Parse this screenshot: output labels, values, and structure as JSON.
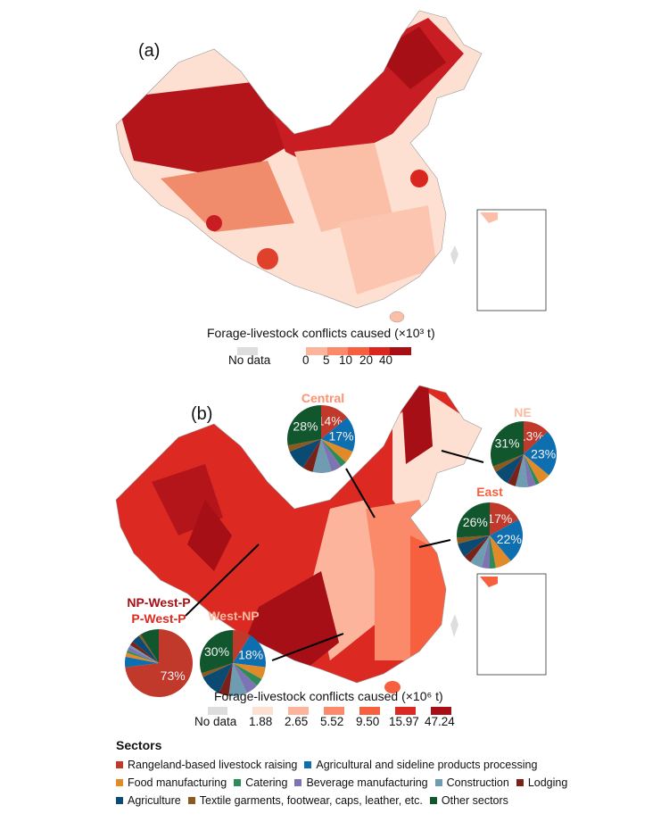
{
  "panel_a": {
    "label": "(a)",
    "legend_title": "Forage-livestock conflicts caused (×10³ t)",
    "no_data_label": "No data",
    "ticks": [
      "0",
      "5",
      "10",
      "20",
      "40"
    ],
    "colors": [
      "#fcb59c",
      "#fb8a6a",
      "#f6603f",
      "#d9271f",
      "#a50f15"
    ],
    "no_data_color": "#dddddd"
  },
  "panel_b": {
    "label": "(b)",
    "legend_title": "Forage-livestock conflicts caused (×10⁶ t)",
    "no_data_label": "No data",
    "classes": [
      "1.88",
      "2.65",
      "5.52",
      "9.50",
      "15.97",
      "47.24"
    ],
    "colors": [
      "#fee0d2",
      "#fcb59c",
      "#fb8a6a",
      "#f6603f",
      "#dc2a23",
      "#a50f15"
    ],
    "no_data_color": "#dddddd"
  },
  "regions": [
    {
      "name": "Central",
      "title_color": "#fc9272",
      "values": [
        14,
        17,
        6,
        3,
        5,
        9,
        5,
        10,
        3,
        28
      ],
      "labels": [
        "14%",
        "17%",
        "",
        "",
        "",
        "",
        "",
        "",
        "",
        "28%"
      ]
    },
    {
      "name": "NE",
      "title_color": "#fcbba1",
      "values": [
        13,
        23,
        6,
        2,
        4,
        6,
        4,
        8,
        3,
        31
      ],
      "labels": [
        "13%",
        "23%",
        "",
        "",
        "",
        "",
        "",
        "",
        "",
        "31%"
      ]
    },
    {
      "name": "East",
      "title_color": "#f6603f",
      "values": [
        17,
        22,
        8,
        3,
        4,
        6,
        4,
        7,
        3,
        26
      ],
      "labels": [
        "17%",
        "22%",
        "",
        "",
        "",
        "",
        "",
        "",
        "",
        "26%"
      ]
    },
    {
      "name": "West-NP",
      "title_color": "#fcbba1",
      "values": [
        9,
        18,
        6,
        4,
        6,
        9,
        5,
        11,
        2,
        30
      ],
      "labels": [
        "",
        "18%",
        "",
        "",
        "",
        "",
        "",
        "",
        "",
        "30%"
      ]
    },
    {
      "name": "NP-West-P",
      "name2": "P-West-P",
      "title_color": "#a50f15",
      "title2_color": "#dc2a23",
      "values": [
        73,
        5,
        2,
        1,
        2,
        1,
        2,
        4,
        1,
        9
      ],
      "labels": [
        "73%",
        "",
        "",
        "",
        "",
        "",
        "",
        "",
        "",
        ""
      ]
    }
  ],
  "sectors": {
    "title": "Sectors",
    "items": [
      {
        "label": "Rangeland-based livestock raising",
        "color": "#c0392b"
      },
      {
        "label": "Agricultural and sideline products processing",
        "color": "#0e6fb0"
      },
      {
        "label": "Food manufacturing",
        "color": "#e08a2a"
      },
      {
        "label": "Catering",
        "color": "#2e8b57"
      },
      {
        "label": "Beverage manufacturing",
        "color": "#7d74b4"
      },
      {
        "label": "Construction",
        "color": "#6f9cb0"
      },
      {
        "label": "Lodging",
        "color": "#7a2218"
      },
      {
        "label": "Agriculture",
        "color": "#0b4a73"
      },
      {
        "label": "Textile garments, footwear, caps, leather, etc.",
        "color": "#8b5a1e"
      },
      {
        "label": "Other sectors",
        "color": "#12562e"
      }
    ]
  }
}
